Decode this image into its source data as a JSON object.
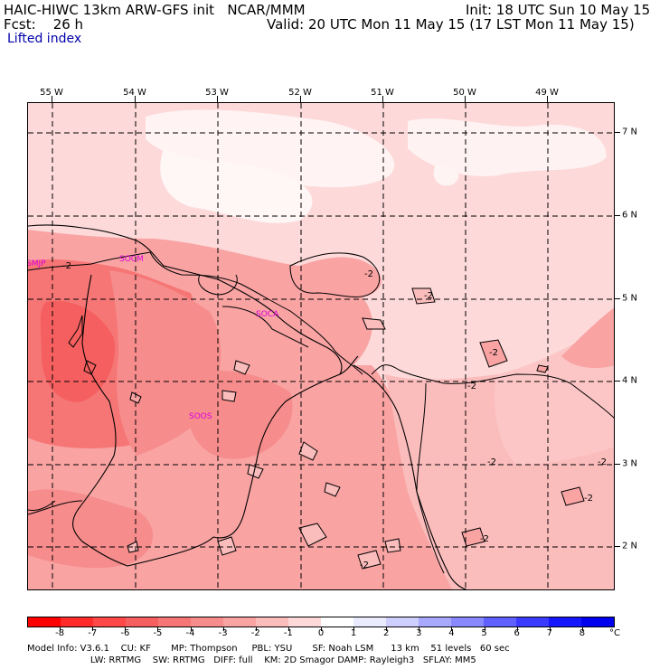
{
  "header": {
    "title": "HAIC-HIWC 13km ARW-GFS init   NCAR/MMM",
    "init": "Init: 18 UTC Sun 10 May 15",
    "fcst": "Fcst:    26 h",
    "valid": "Valid: 20 UTC Mon 11 May 15 (17 LST Mon 11 May 15)",
    "field": "Lifted index"
  },
  "map": {
    "longitudes": [
      "55 W",
      "54 W",
      "53 W",
      "52 W",
      "51 W",
      "50 W",
      "49 W"
    ],
    "latitudes": [
      "7 N",
      "6 N",
      "5 N",
      "4 N",
      "3 N",
      "2 N"
    ],
    "stations": [
      "SMJP",
      "SOCM",
      "SOCA",
      "SOOS"
    ],
    "contour_label": "-2"
  },
  "colorbar": {
    "labels": [
      "-8",
      "-7",
      "-6",
      "-5",
      "-4",
      "-3",
      "-2",
      "-1",
      "0",
      "1",
      "2",
      "3",
      "4",
      "5",
      "6",
      "7",
      "8"
    ],
    "unit": "°C",
    "colors": [
      "#ff0000",
      "#ff2b2b",
      "#ff4848",
      "#f55f5f",
      "#f67676",
      "#f68c8c",
      "#f9a3a3",
      "#fbbcbc",
      "#fdd9d9",
      "#ffffff",
      "#ebebff",
      "#cfcfff",
      "#a8a8ff",
      "#8989ff",
      "#6060ff",
      "#3b3bff",
      "#1616ff",
      "#0000ee"
    ]
  },
  "footer": {
    "line1": "Model Info: V3.6.1    CU: KF       MP: Thompson     PBL: YSU       SF: Noah LSM      13 km    51 levels   60 sec",
    "line2": "                      LW: RRTMG    SW: RRTMG   DIFF: full    KM: 2D Smagor DAMP: Rayleigh3   SFLAY: MM5"
  }
}
